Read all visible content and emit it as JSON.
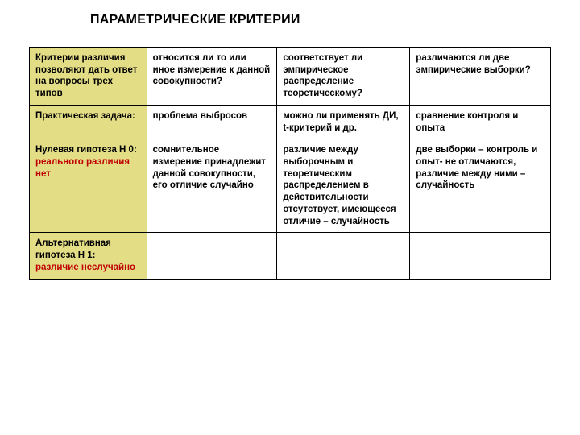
{
  "title": "ПАРАМЕТРИЧЕСКИЕ КРИТЕРИИ",
  "colors": {
    "label_bg": "#e3dd86",
    "value_bg": "#ffffff",
    "text": "#000000",
    "accent_red": "#c00000",
    "border": "#000000"
  },
  "typography": {
    "title_fontsize_pt": 12,
    "cell_fontsize_pt": 9,
    "font_family": "Arial",
    "font_weight": "bold"
  },
  "table": {
    "column_widths_pct": [
      22.5,
      25,
      25.5,
      27
    ],
    "rows": [
      {
        "label": "Критерии различия позволяют дать ответ на вопросы трех типов",
        "cells": [
          "относится ли то или иное измерение к данной совокупности?",
          "соответствует ли эмпирическое распределение теоретическому?",
          "различаются ли две эмпирические выборки?"
        ]
      },
      {
        "label": "Практическая задача:",
        "cells": [
          "проблема выбросов",
          "можно ли применять ДИ, t-критерий и др.",
          "сравнение контроля и опыта"
        ]
      },
      {
        "label_pre": "Нулевая гипотеза Н 0: ",
        "label_red": "реального различия нет",
        "cells": [
          "сомнительное измерение принадлежит данной совокупности, его отличие случайно",
          "различие между выборочным и теоретическим распределением в действительности отсутствует, имеющееся отличие – случайность",
          "две выборки – контроль и опыт- не отличаются, различие между ними – случайность"
        ]
      },
      {
        "label_pre": "Альтернативная гипотеза Н 1: ",
        "label_red": "различие неслучайно",
        "cells": [
          "",
          "",
          ""
        ]
      }
    ]
  }
}
